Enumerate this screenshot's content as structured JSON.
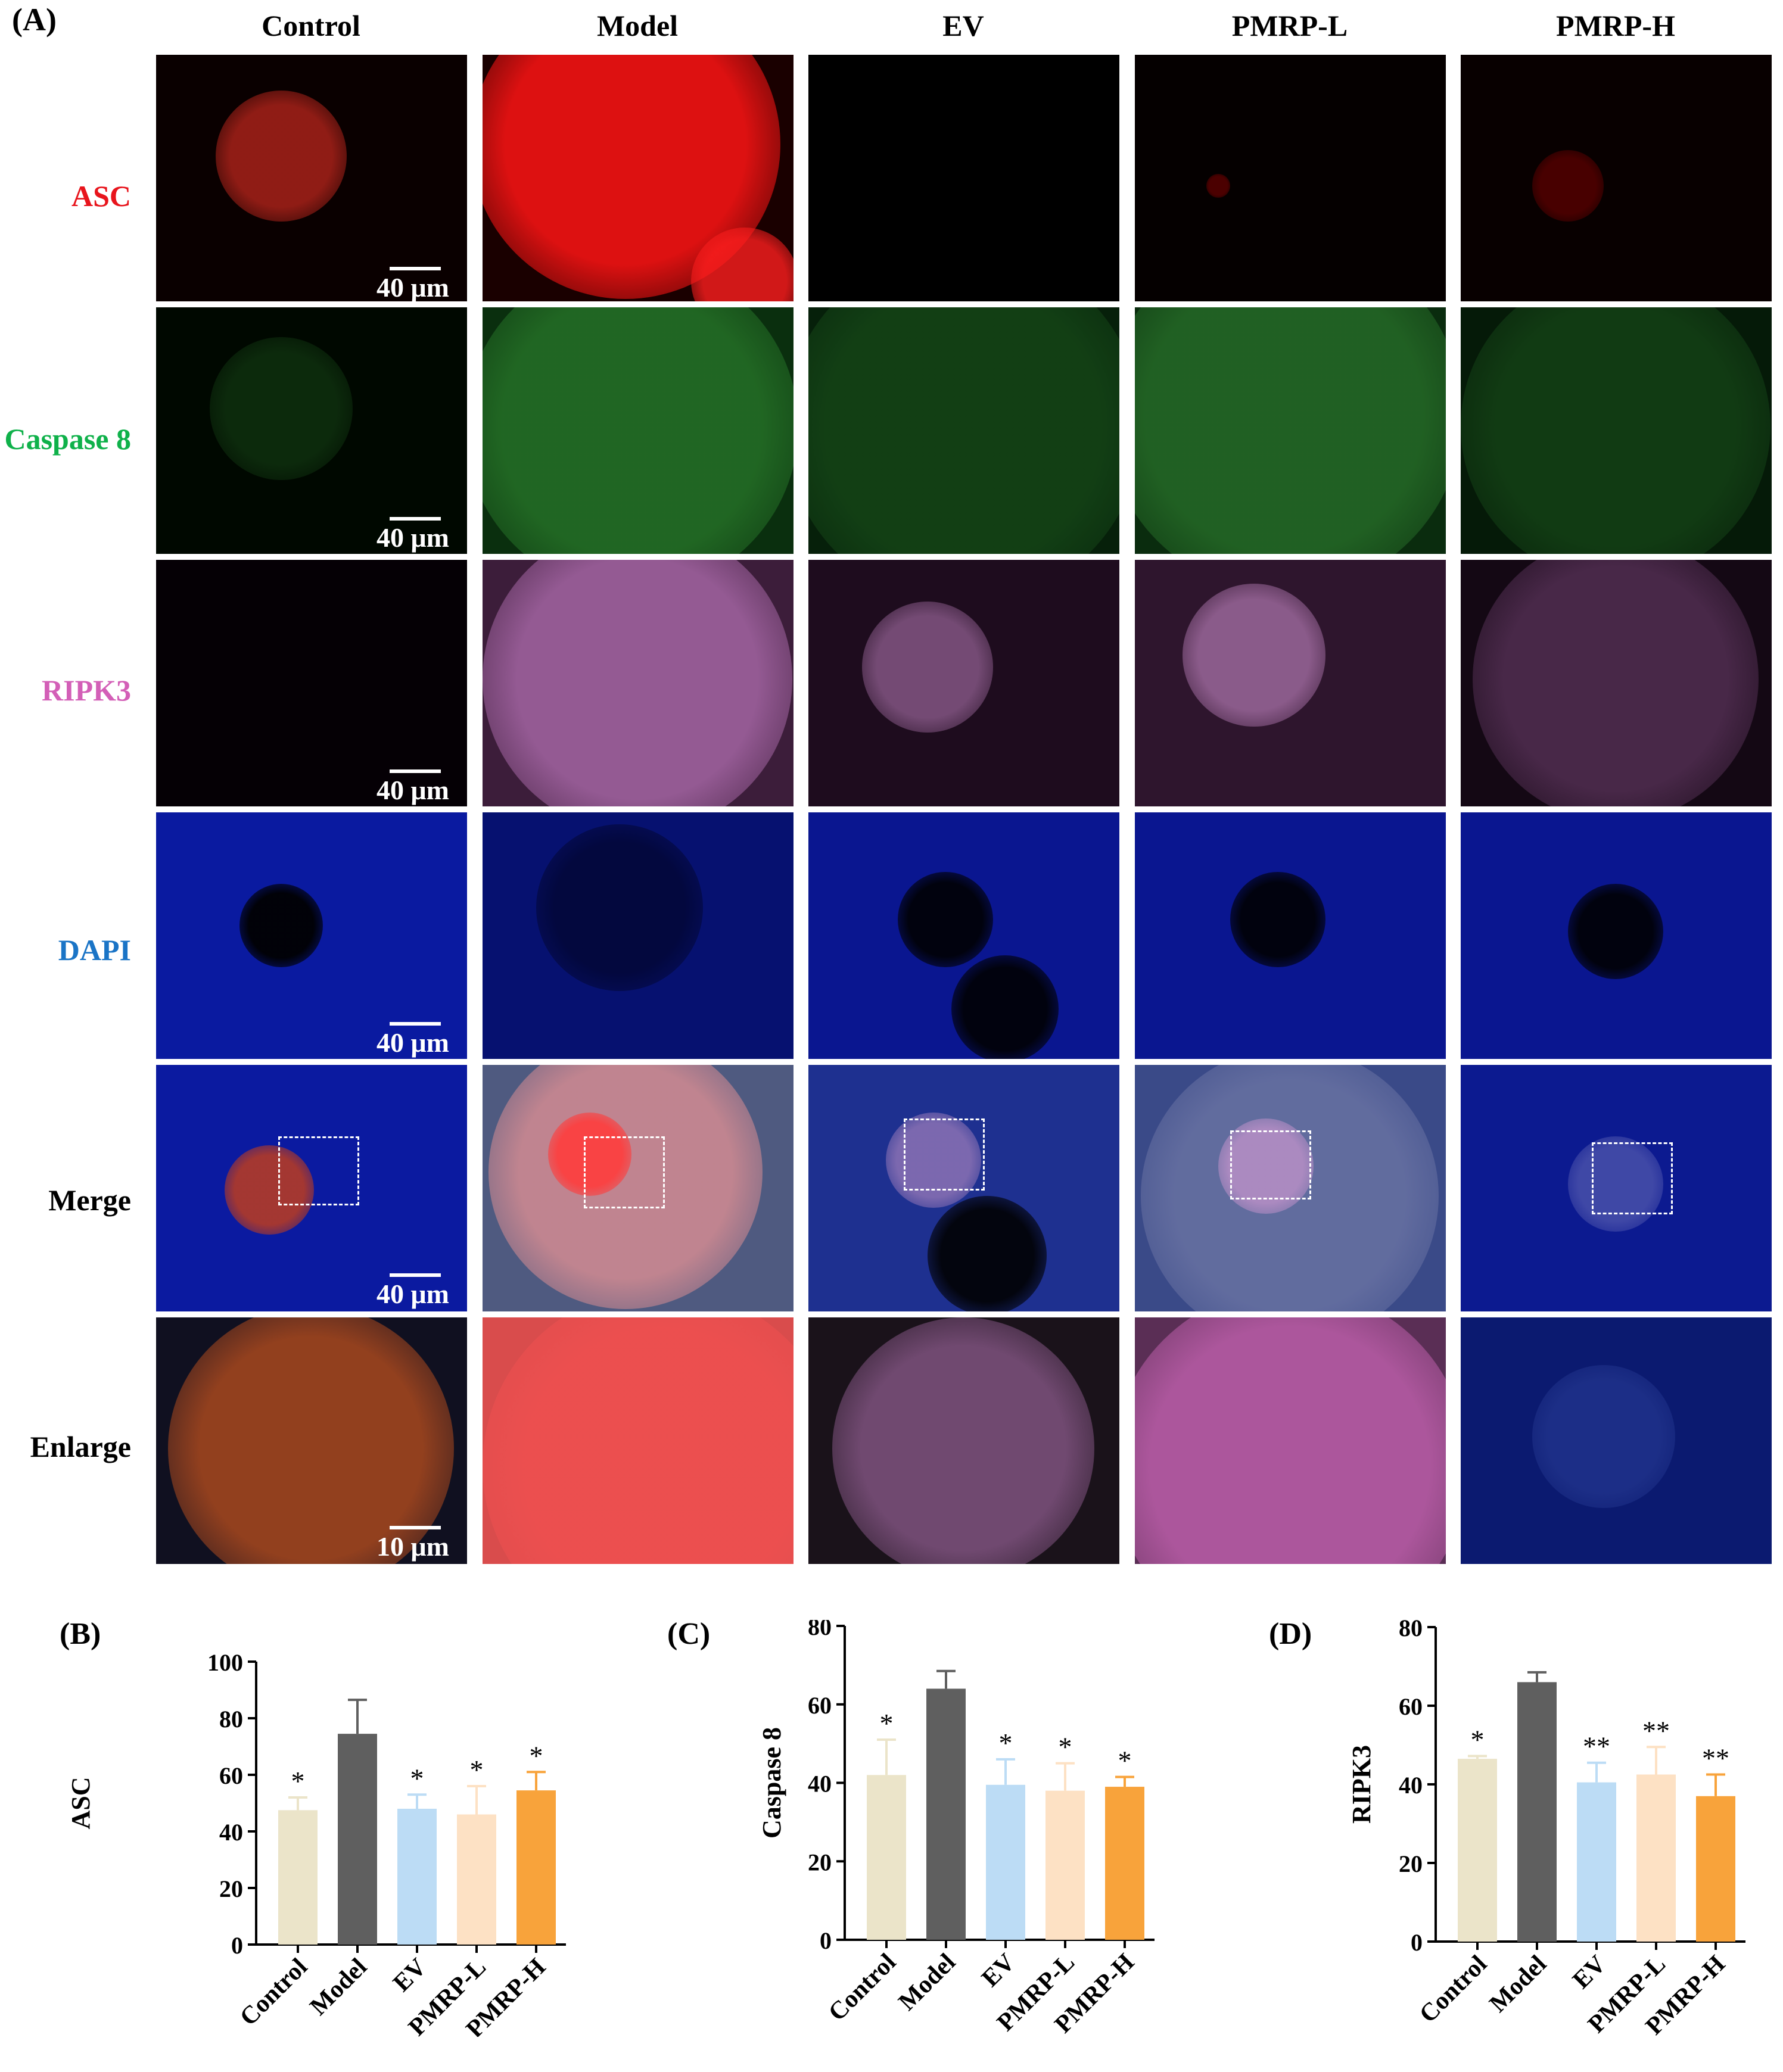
{
  "figure": {
    "panel_a_label": "(A)",
    "columns": [
      "Control",
      "Model",
      "EV",
      "PMRP-L",
      "PMRP-H"
    ],
    "rows": [
      {
        "label": "ASC",
        "color": "#e8141c"
      },
      {
        "label": "Caspase 8",
        "color": "#0fb14a"
      },
      {
        "label": "RIPK3",
        "color": "#d35fb7"
      },
      {
        "label": "DAPI",
        "color": "#1a74c6"
      },
      {
        "label": "Merge",
        "color": "#000000"
      },
      {
        "label": "Enlarge",
        "color": "#000000"
      }
    ],
    "scale_bars": [
      "40 μm",
      "40 μm",
      "40 μm",
      "40 μm",
      "40 μm",
      "10 μm"
    ]
  },
  "chart_data": [
    {
      "panel": "(B)",
      "type": "bar",
      "categories": [
        "Control",
        "Model",
        "EV",
        "PMRP-L",
        "PMRP-H"
      ],
      "values": [
        47.5,
        74.5,
        48.0,
        46.0,
        54.5
      ],
      "errors": [
        4.5,
        12.0,
        5.0,
        10.0,
        6.5
      ],
      "significance": [
        "*",
        "",
        "*",
        "*",
        "*"
      ],
      "colors": [
        "#ebe4c9",
        "#5f5f5f",
        "#bcdcf5",
        "#fde1c4",
        "#f8a33b"
      ],
      "ylabel": "ASC",
      "ylim": [
        0,
        100
      ],
      "yticks": [
        0,
        20,
        40,
        60,
        80,
        100
      ]
    },
    {
      "panel": "(C)",
      "type": "bar",
      "categories": [
        "Control",
        "Model",
        "EV",
        "PMRP-L",
        "PMRP-H"
      ],
      "values": [
        42.0,
        64.0,
        39.5,
        38.0,
        39.0
      ],
      "errors": [
        9.0,
        4.5,
        6.5,
        7.0,
        2.5
      ],
      "significance": [
        "*",
        "",
        "*",
        "*",
        "*"
      ],
      "colors": [
        "#ebe4c9",
        "#5f5f5f",
        "#bcdcf5",
        "#fde1c4",
        "#f8a33b"
      ],
      "ylabel": "Caspase 8",
      "ylim": [
        0,
        80
      ],
      "yticks": [
        0,
        20,
        40,
        60,
        80
      ]
    },
    {
      "panel": "(D)",
      "type": "bar",
      "categories": [
        "Control",
        "Model",
        "EV",
        "PMRP-L",
        "PMRP-H"
      ],
      "values": [
        46.5,
        66.0,
        40.5,
        42.5,
        37.0
      ],
      "errors": [
        0.7,
        2.5,
        5.0,
        7.0,
        5.5
      ],
      "significance": [
        "*",
        "",
        "**",
        "**",
        "**"
      ],
      "colors": [
        "#ebe4c9",
        "#5f5f5f",
        "#bcdcf5",
        "#fde1c4",
        "#f8a33b"
      ],
      "ylabel": "RIPK3",
      "ylim": [
        0,
        80
      ],
      "yticks": [
        0,
        20,
        40,
        60,
        80
      ]
    }
  ]
}
